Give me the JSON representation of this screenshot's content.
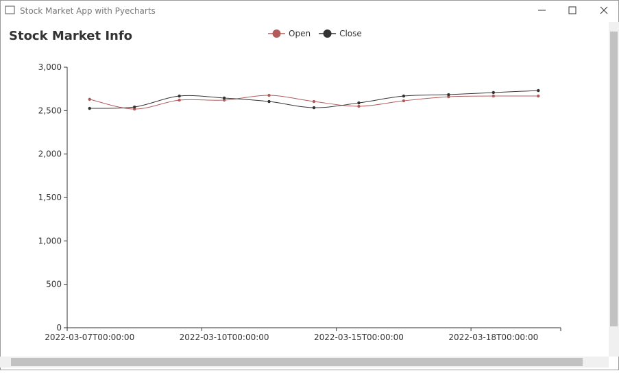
{
  "window": {
    "title": "Stock Market App with Pyecharts"
  },
  "chart_data": {
    "type": "line",
    "title": "Stock Market Info",
    "categories": [
      "2022-03-07T00:00:00",
      null,
      null,
      "2022-03-10T00:00:00",
      null,
      null,
      "2022-03-15T00:00:00",
      null,
      null,
      "2022-03-18T00:00:00",
      null
    ],
    "series": [
      {
        "name": "Open",
        "color": "#b35b5b",
        "values": [
          2630,
          2518,
          2621,
          2621,
          2676,
          2605,
          2550,
          2613,
          2660,
          2668,
          2668
        ]
      },
      {
        "name": "Close",
        "color": "#333333",
        "values": [
          2526,
          2542,
          2668,
          2645,
          2605,
          2534,
          2589,
          2668,
          2684,
          2708,
          2731
        ]
      }
    ],
    "ylim": [
      0,
      3000
    ],
    "yticks": [
      0,
      500,
      {
        "value": 1000,
        "label": "1,000"
      },
      {
        "value": 1500,
        "label": "1,500"
      },
      {
        "value": 2000,
        "label": "2,000"
      },
      {
        "value": 2500,
        "label": "2,500"
      },
      {
        "value": 3000,
        "label": "3,000"
      }
    ],
    "smooth": true
  }
}
